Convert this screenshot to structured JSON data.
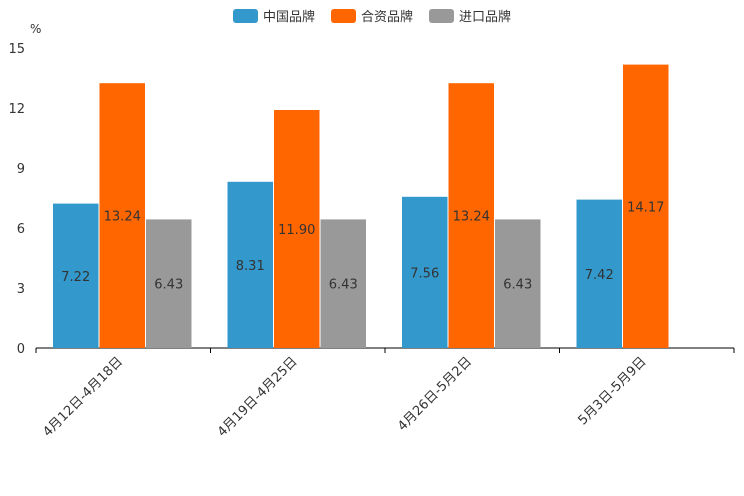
{
  "chart_data": {
    "type": "bar",
    "title": "",
    "ylabel": "%",
    "xlabel": "",
    "ylim": [
      0,
      15
    ],
    "yticks": [
      0,
      3,
      6,
      9,
      12,
      15
    ],
    "categories": [
      "4月12日-4月18日",
      "4月19日-4月25日",
      "4月26日-5月2日",
      "5月3日-5月9日"
    ],
    "series": [
      {
        "name": "中国品牌",
        "color": "#3399cc",
        "values": [
          7.22,
          8.31,
          7.56,
          7.42
        ],
        "labels": [
          "7.22",
          "8.31",
          "7.56",
          "7.42"
        ]
      },
      {
        "name": "合资品牌",
        "color": "#ff6600",
        "values": [
          13.24,
          11.9,
          13.24,
          14.17
        ],
        "labels": [
          "13.24",
          "11.90",
          "13.24",
          "14.17"
        ]
      },
      {
        "name": "进口品牌",
        "color": "#999999",
        "values": [
          6.43,
          6.43,
          6.43,
          null
        ],
        "labels": [
          "6.43",
          "6.43",
          "6.43",
          null
        ]
      }
    ],
    "legend_position": "top-center"
  }
}
